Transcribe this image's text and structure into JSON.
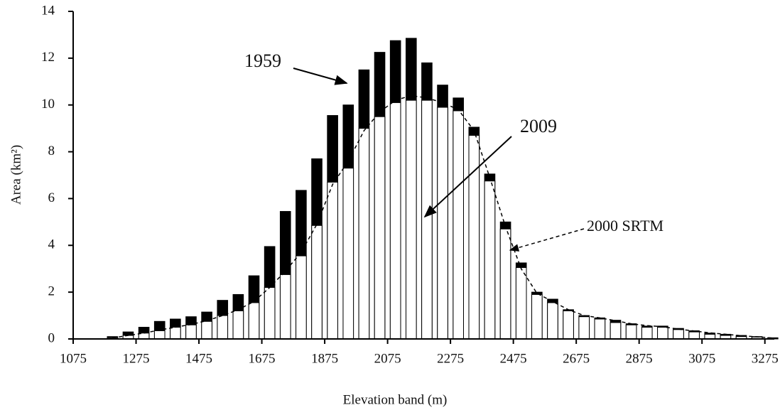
{
  "chart_data": {
    "type": "bar",
    "x_label": "Elevation band (m)",
    "y_label": "Area (km²)",
    "x": [
      1200,
      1250,
      1300,
      1350,
      1400,
      1450,
      1500,
      1550,
      1600,
      1650,
      1700,
      1750,
      1800,
      1850,
      1900,
      1950,
      2000,
      2050,
      2100,
      2150,
      2200,
      2250,
      2300,
      2350,
      2400,
      2450,
      2500,
      2550,
      2600,
      2650,
      2700,
      2750,
      2800,
      2850,
      2900,
      2950,
      3000,
      3050,
      3100,
      3150,
      3200,
      3250,
      3300
    ],
    "series": [
      {
        "name": "1959",
        "color": "#000000",
        "values": [
          0.1,
          0.3,
          0.5,
          0.75,
          0.85,
          0.95,
          1.15,
          1.65,
          1.9,
          2.7,
          3.95,
          5.45,
          6.35,
          7.7,
          9.55,
          10.0,
          11.5,
          12.25,
          12.75,
          12.85,
          11.8,
          10.85,
          10.3,
          9.05,
          7.05,
          5.0,
          3.25,
          2.0,
          1.7,
          1.25,
          1.0,
          0.9,
          0.8,
          0.65,
          0.55,
          0.55,
          0.45,
          0.35,
          0.25,
          0.2,
          0.15,
          0.1,
          0.05
        ]
      },
      {
        "name": "2009",
        "color": "#ffffff",
        "values": [
          0.05,
          0.15,
          0.25,
          0.35,
          0.5,
          0.6,
          0.75,
          1.0,
          1.2,
          1.55,
          2.2,
          2.75,
          3.55,
          4.85,
          6.7,
          7.3,
          9.0,
          9.5,
          10.1,
          10.2,
          10.2,
          9.9,
          9.75,
          8.7,
          6.75,
          4.7,
          3.05,
          1.9,
          1.55,
          1.2,
          0.95,
          0.85,
          0.7,
          0.6,
          0.5,
          0.5,
          0.4,
          0.3,
          0.2,
          0.15,
          0.1,
          0.08,
          0.03
        ]
      },
      {
        "name": "2000 SRTM",
        "color": "#000000",
        "values": [
          0.04,
          0.15,
          0.25,
          0.38,
          0.5,
          0.62,
          0.78,
          1.0,
          1.25,
          1.6,
          2.2,
          2.9,
          3.7,
          4.9,
          6.6,
          7.6,
          8.9,
          9.7,
          10.2,
          10.4,
          10.3,
          10.1,
          9.8,
          8.9,
          6.9,
          4.8,
          3.0,
          1.95,
          1.6,
          1.25,
          1.0,
          0.9,
          0.78,
          0.65,
          0.57,
          0.52,
          0.42,
          0.34,
          0.26,
          0.2,
          0.14,
          0.09,
          0.04
        ]
      }
    ],
    "xlim": [
      1075,
      3305
    ],
    "xticks": [
      1075,
      1275,
      1475,
      1675,
      1875,
      2075,
      2275,
      2475,
      2675,
      2875,
      3075,
      3275
    ],
    "ylim": [
      0,
      14
    ],
    "yticks": [
      0,
      2,
      4,
      6,
      8,
      10,
      12,
      14
    ],
    "grid": false
  }
}
